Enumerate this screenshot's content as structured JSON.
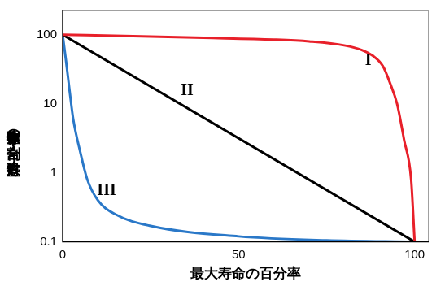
{
  "chart_data": {
    "type": "line",
    "x_label": "最大寿命の百分率",
    "y_label": "生存個体数の割合(対数目盛)",
    "log": "y",
    "grid": false,
    "xlim": [
      0,
      104
    ],
    "xticks": [
      0,
      50,
      100
    ],
    "ylim": [
      0.1,
      230
    ],
    "yticks": [
      0.1,
      1,
      10,
      100
    ],
    "series": [
      {
        "name": "I",
        "color": "#e8202a",
        "x": [
          0,
          20,
          40,
          60,
          70,
          80,
          85,
          88,
          91,
          93,
          95,
          97,
          99,
          100
        ],
        "values": [
          100,
          95,
          90,
          85,
          80,
          70,
          60,
          50,
          35,
          20,
          10,
          3,
          0.8,
          0.1
        ]
      },
      {
        "name": "II",
        "color": "#000000",
        "x": [
          0,
          100
        ],
        "values": [
          100,
          0.1
        ]
      },
      {
        "name": "III",
        "color": "#2a78c8",
        "x": [
          0,
          1,
          2,
          3,
          5,
          7,
          10,
          15,
          25,
          50,
          75,
          100
        ],
        "values": [
          100,
          40,
          15,
          6,
          2,
          0.8,
          0.4,
          0.25,
          0.17,
          0.12,
          0.105,
          0.1
        ]
      }
    ]
  }
}
